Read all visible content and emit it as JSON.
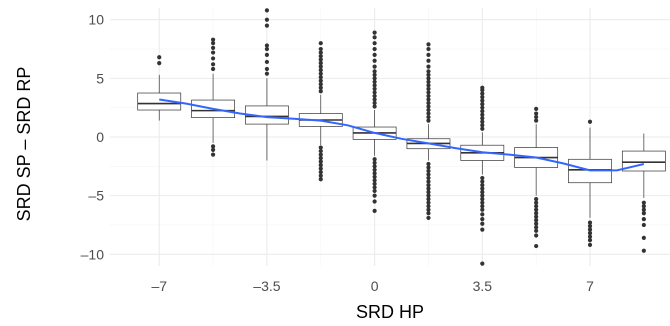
{
  "chart_data": {
    "type": "box",
    "theme": "minimal",
    "grid": true,
    "xlabel": "SRD HP",
    "ylabel": "SRD SP – SRD RP",
    "xlim": [
      -8.6,
      9.6
    ],
    "ylim": [
      -11.0,
      11.0
    ],
    "x_ticks": [
      {
        "value": -7,
        "label": "–7"
      },
      {
        "value": -3.5,
        "label": "–3.5"
      },
      {
        "value": 0,
        "label": "0"
      },
      {
        "value": 3.5,
        "label": "3.5"
      },
      {
        "value": 7,
        "label": "7"
      }
    ],
    "y_ticks": [
      {
        "value": 10,
        "label": "10"
      },
      {
        "value": 5,
        "label": "5"
      },
      {
        "value": 0,
        "label": "0"
      },
      {
        "value": -5,
        "label": "–5"
      },
      {
        "value": -10,
        "label": "–10"
      }
    ],
    "box_width": 1.4,
    "boxes": [
      {
        "x": -7.0,
        "q1": 2.3,
        "median": 2.85,
        "q3": 3.75,
        "whisker_low": 1.4,
        "whisker_high": 5.3,
        "outliers": [
          6.3,
          6.8
        ]
      },
      {
        "x": -5.25,
        "q1": 1.65,
        "median": 2.25,
        "q3": 3.15,
        "whisker_low": -0.5,
        "whisker_high": 5.4,
        "outliers": [
          5.8,
          6.2,
          6.7,
          7.2,
          7.6,
          8.0,
          8.3,
          -0.8,
          -1.1,
          -1.5
        ]
      },
      {
        "x": -3.5,
        "q1": 1.1,
        "median": 1.75,
        "q3": 2.65,
        "whisker_low": -2.0,
        "whisker_high": 5.0,
        "outliers": [
          5.4,
          5.8,
          6.4,
          7.0,
          7.5,
          7.8,
          9.5,
          10.0,
          10.8
        ]
      },
      {
        "x": -1.75,
        "q1": 0.9,
        "median": 1.45,
        "q3": 2.0,
        "whisker_low": -0.7,
        "whisker_high": 3.6,
        "outliers": [
          3.9,
          4.2,
          4.5,
          4.8,
          5.1,
          5.4,
          5.7,
          6.0,
          6.3,
          6.6,
          6.9,
          7.2,
          7.5,
          8.0,
          -0.9,
          -1.2,
          -1.5,
          -1.8,
          -2.1,
          -2.4,
          -2.7,
          -3.0,
          -3.3,
          -3.6
        ]
      },
      {
        "x": 0.0,
        "q1": -0.2,
        "median": 0.35,
        "q3": 0.85,
        "whisker_low": -1.6,
        "whisker_high": 2.3,
        "outliers": [
          2.6,
          2.9,
          3.2,
          3.5,
          3.8,
          4.1,
          4.4,
          4.7,
          5.0,
          5.3,
          5.6,
          6.0,
          6.5,
          7.0,
          7.5,
          8.0,
          8.5,
          8.9,
          -1.9,
          -2.2,
          -2.5,
          -2.8,
          -3.1,
          -3.4,
          -3.7,
          -4.0,
          -4.3,
          -4.6,
          -5.0,
          -5.5,
          -6.3
        ]
      },
      {
        "x": 1.75,
        "q1": -1.0,
        "median": -0.55,
        "q3": -0.15,
        "whisker_low": -2.0,
        "whisker_high": 1.1,
        "outliers": [
          1.4,
          1.7,
          2.0,
          2.3,
          2.6,
          2.9,
          3.2,
          3.5,
          3.8,
          4.1,
          4.4,
          4.7,
          5.0,
          5.3,
          5.6,
          6.0,
          6.5,
          7.0,
          7.5,
          7.9,
          -2.3,
          -2.6,
          -2.9,
          -3.2,
          -3.5,
          -3.8,
          -4.1,
          -4.4,
          -4.7,
          -5.0,
          -5.3,
          -5.6,
          -5.9,
          -6.2,
          -6.5,
          -6.9
        ]
      },
      {
        "x": 3.5,
        "q1": -2.0,
        "median": -1.35,
        "q3": -0.7,
        "whisker_low": -3.2,
        "whisker_high": 0.4,
        "outliers": [
          0.7,
          1.0,
          1.3,
          1.6,
          1.9,
          2.2,
          2.5,
          2.8,
          3.1,
          3.4,
          3.7,
          4.0,
          4.2,
          -3.5,
          -3.8,
          -4.1,
          -4.4,
          -4.7,
          -5.0,
          -5.3,
          -5.6,
          -5.9,
          -6.2,
          -6.6,
          -7.0,
          -7.4,
          -7.9,
          -10.8
        ]
      },
      {
        "x": 5.25,
        "q1": -2.6,
        "median": -1.75,
        "q3": -0.9,
        "whisker_low": -5.0,
        "whisker_high": 1.1,
        "outliers": [
          1.4,
          1.7,
          2.0,
          2.4,
          -5.3,
          -5.6,
          -5.9,
          -6.2,
          -6.5,
          -6.8,
          -7.1,
          -7.4,
          -7.7,
          -8.0,
          -8.4,
          -9.3
        ]
      },
      {
        "x": 7.0,
        "q1": -3.9,
        "median": -2.8,
        "q3": -1.9,
        "whisker_low": -6.9,
        "whisker_high": 0.8,
        "outliers": [
          1.3,
          -7.3,
          -7.6,
          -7.9,
          -8.2,
          -8.5,
          -8.8,
          -9.2
        ]
      },
      {
        "x": 8.75,
        "q1": -2.9,
        "median": -2.15,
        "q3": -1.2,
        "whisker_low": -5.2,
        "whisker_high": 0.3,
        "outliers": [
          -5.6,
          -5.9,
          -6.2,
          -6.5,
          -7.0,
          -7.5,
          -8.6,
          -9.7
        ]
      }
    ],
    "smooth_line": {
      "color": "#3366ff",
      "x": [
        -7.0,
        -6.125,
        -5.25,
        -4.375,
        -3.5,
        -2.625,
        -1.75,
        -0.875,
        0.0,
        0.875,
        1.75,
        2.625,
        3.5,
        4.375,
        5.25,
        6.125,
        7.0,
        7.875,
        8.75
      ],
      "y": [
        3.2,
        2.85,
        2.4,
        2.0,
        1.7,
        1.55,
        1.4,
        1.0,
        0.35,
        -0.15,
        -0.55,
        -0.95,
        -1.3,
        -1.5,
        -1.75,
        -2.25,
        -2.85,
        -2.85,
        -2.3
      ]
    }
  }
}
